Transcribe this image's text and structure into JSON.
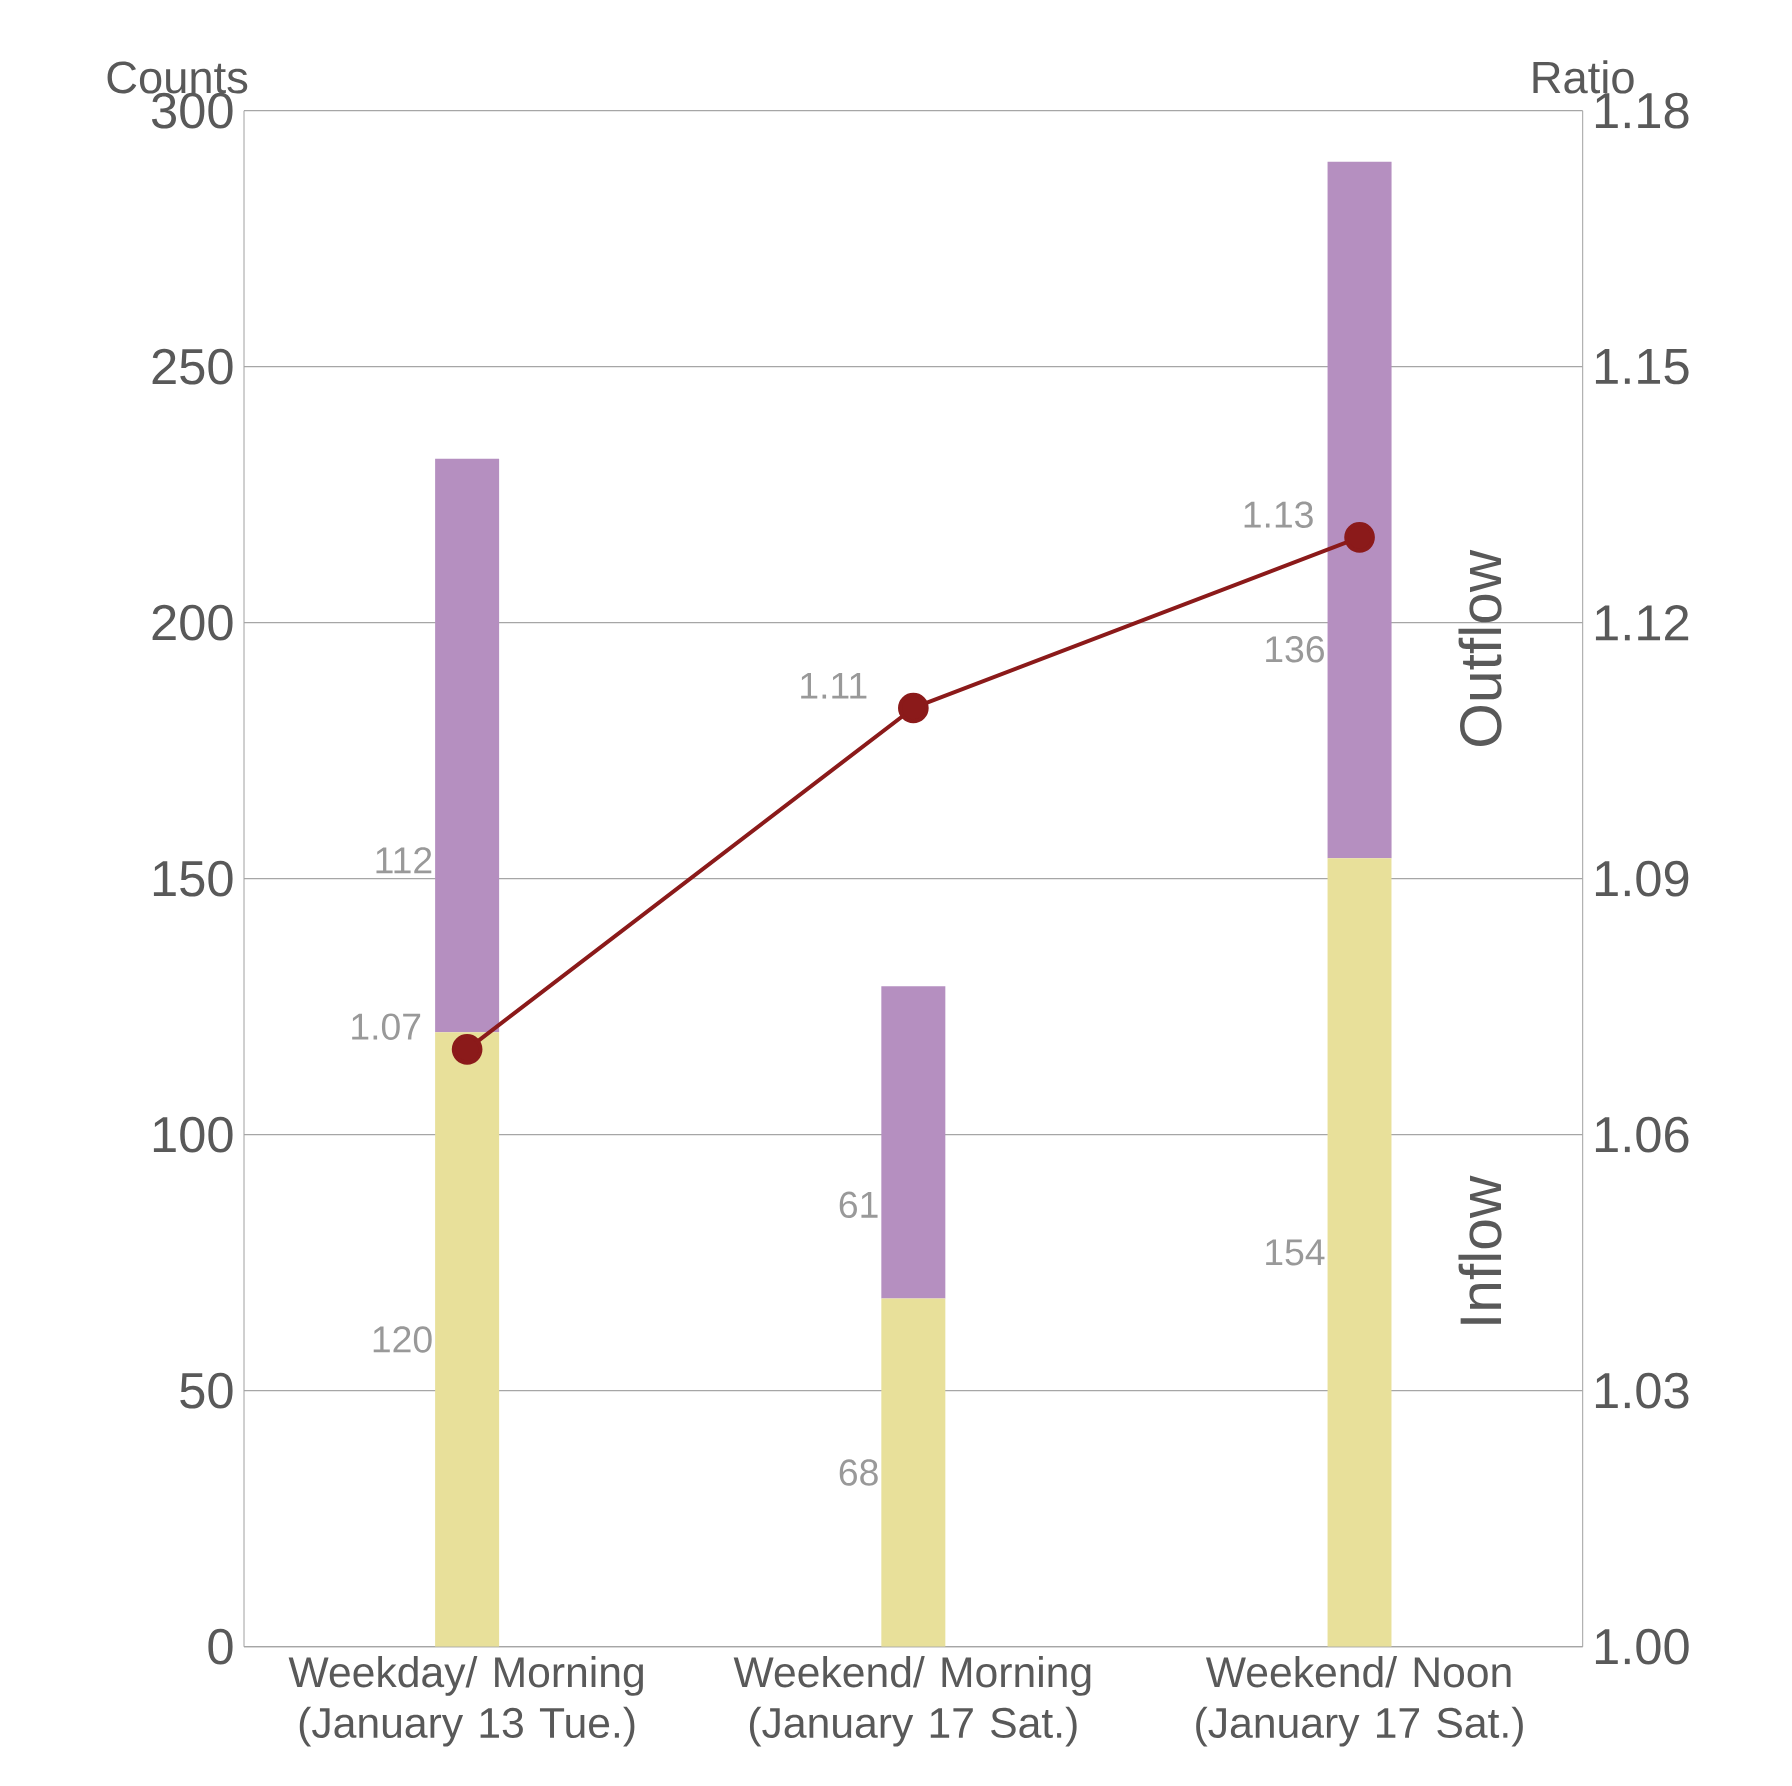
{
  "chart_data": {
    "type": "bar",
    "stacked": true,
    "categories": [
      "Weekday/ Morning (January 13 Tue.)",
      "Weekend/ Morning (January 17 Sat.)",
      "Weekend/ Noon (January 17 Sat.)"
    ],
    "series": [
      {
        "name": "Inflow",
        "color": "#e8e09a",
        "values": [
          120,
          68,
          154
        ]
      },
      {
        "name": "Outflow",
        "color": "#b58fc0",
        "values": [
          112,
          61,
          136
        ]
      },
      {
        "type": "line",
        "axis": "y2",
        "color": "#8b1a1a",
        "marker": "circle",
        "values": [
          1.07,
          1.11,
          1.13
        ]
      }
    ],
    "ylabel": "Counts",
    "y2label": "Ratio",
    "ylim": [
      0,
      300
    ],
    "yticks": [
      0,
      50,
      100,
      150,
      200,
      250,
      300
    ],
    "y2lim": [
      1.0,
      1.18
    ],
    "y2ticks": [
      {
        "value": 1.0,
        "label": "1.00"
      },
      1.03,
      1.06,
      1.09,
      1.12,
      1.15,
      1.18
    ],
    "grid": "y",
    "data_labels": true
  }
}
